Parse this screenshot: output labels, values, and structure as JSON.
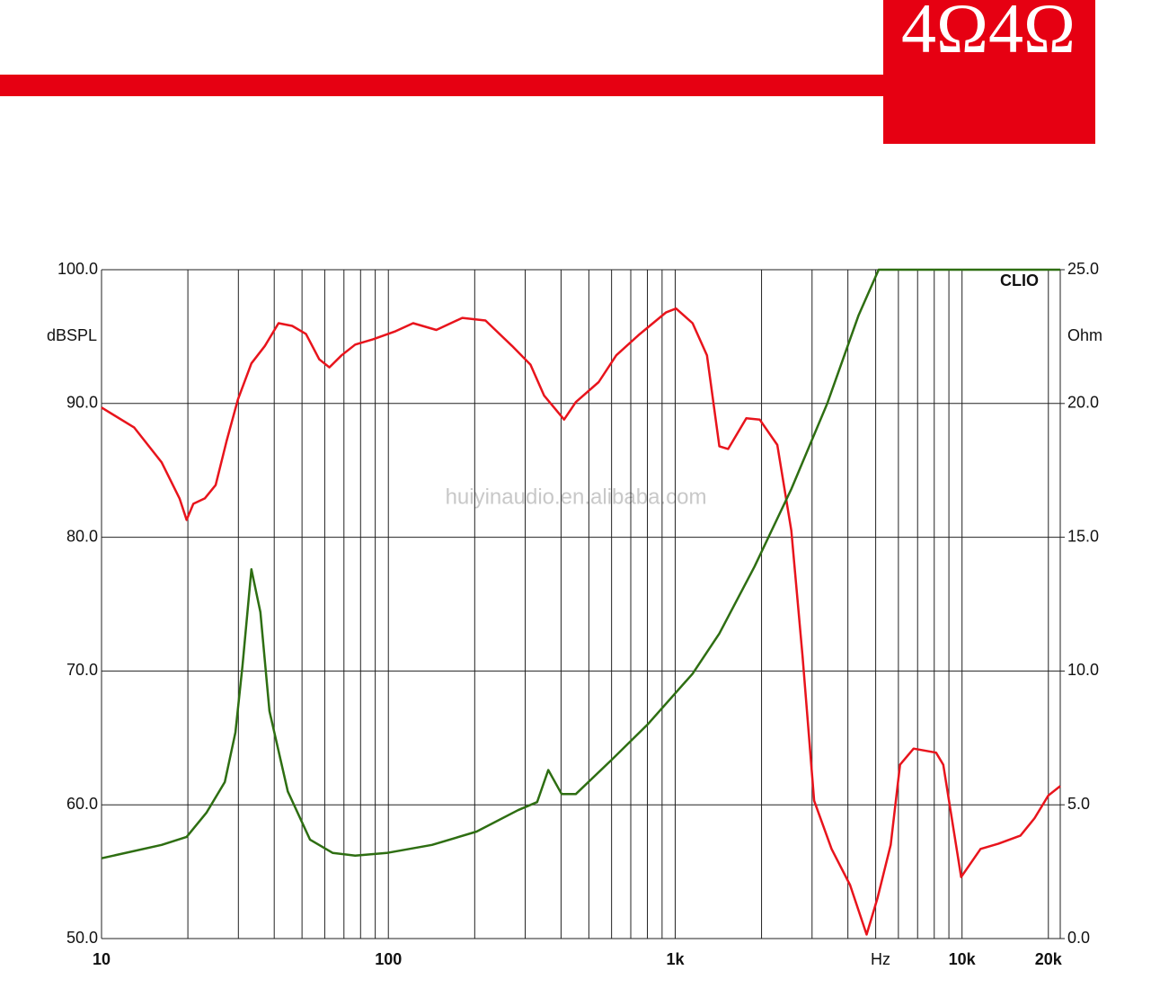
{
  "chart_data": {
    "type": "line",
    "badge": "4Ω4Ω",
    "watermark": "huiyinaudio.en.alibaba.com",
    "brand": "CLIO",
    "ylabel": "dBSPL",
    "y2label": "Ohm",
    "xlabel": "Hz",
    "xscale": "log",
    "xlim": [
      10,
      22000
    ],
    "xticks": [
      10,
      100,
      {
        "value": 1000,
        "label": "1k"
      },
      {
        "value": 10000,
        "label": "10k"
      },
      {
        "value": 20000,
        "label": "20k"
      }
    ],
    "xgrid": [
      20,
      30,
      40,
      50,
      60,
      70,
      80,
      90,
      200,
      300,
      400,
      500,
      600,
      700,
      800,
      900,
      2000,
      3000,
      4000,
      5000,
      6000,
      7000,
      8000,
      9000
    ],
    "ylim": [
      50,
      100
    ],
    "yticks": [
      {
        "value": 50,
        "label": "50.0"
      },
      {
        "value": 60,
        "label": "60.0"
      },
      {
        "value": 70,
        "label": "70.0"
      },
      {
        "value": 80,
        "label": "80.0"
      },
      {
        "value": 90,
        "label": "90.0"
      },
      {
        "value": 100,
        "label": "100.0"
      }
    ],
    "y2lim": [
      0,
      25
    ],
    "y2ticks": [
      {
        "value": 0,
        "label": "0.0"
      },
      {
        "value": 5,
        "label": "5.0"
      },
      {
        "value": 10,
        "label": "10.0"
      },
      {
        "value": 15,
        "label": "15.0"
      },
      {
        "value": 20,
        "label": "20.0"
      },
      {
        "value": 25,
        "label": "25.0"
      }
    ],
    "grid": true,
    "series": [
      {
        "color": "#e8141c",
        "x": [
          10,
          13,
          16.2,
          18.7,
          19.8,
          20.9,
          22.9,
          25,
          27.3,
          29.9,
          33.3,
          37.1,
          41.4,
          46.2,
          51.6,
          57.4,
          62.3,
          68.7,
          76.6,
          88.4,
          106,
          122,
          147,
          181,
          218,
          270,
          313,
          349,
          410,
          450,
          541,
          623,
          744,
          928,
          1007,
          1150,
          1290,
          1425,
          1530,
          1770,
          1970,
          2270,
          2540,
          2780,
          3050,
          3510,
          4070,
          4650,
          5070,
          5640,
          6080,
          6780,
          8120,
          8600,
          9930,
          11600,
          13400,
          16000,
          17900,
          20000,
          22000
        ],
        "values": [
          89.7,
          88.2,
          85.6,
          82.9,
          81.3,
          82.5,
          82.9,
          83.9,
          87.2,
          90.3,
          93,
          94.3,
          96,
          95.8,
          95.2,
          93.3,
          92.7,
          93.6,
          94.4,
          94.8,
          95.4,
          96,
          95.5,
          96.4,
          96.2,
          94.3,
          92.9,
          90.6,
          88.8,
          90.1,
          91.6,
          93.6,
          95.1,
          96.8,
          97.1,
          96,
          93.6,
          86.8,
          86.6,
          88.9,
          88.8,
          86.9,
          80.5,
          71.1,
          60.3,
          56.7,
          54,
          50.3,
          53,
          57,
          63,
          64.2,
          63.9,
          63,
          54.6,
          56.7,
          57.1,
          57.7,
          59,
          60.7,
          61.4
        ]
      },
      {
        "color": "#2e6e12",
        "axis": "y2",
        "x": [
          10,
          16.2,
          19.8,
          23.2,
          26.9,
          29.3,
          31,
          33.3,
          35.8,
          38.5,
          44.6,
          53.3,
          64,
          76.6,
          98.6,
          142,
          203,
          283,
          330,
          361,
          402,
          450,
          603,
          801,
          1150,
          1425,
          1890,
          2540,
          3390,
          4360,
          5120,
          22000
        ],
        "values": [
          3.0,
          3.5,
          3.8,
          4.7,
          5.85,
          7.7,
          10.2,
          13.8,
          12.2,
          8.5,
          5.5,
          3.7,
          3.2,
          3.1,
          3.2,
          3.5,
          4.0,
          4.8,
          5.1,
          6.3,
          5.4,
          5.4,
          6.7,
          8.0,
          9.9,
          11.4,
          13.9,
          16.8,
          20,
          23.3,
          25,
          25
        ]
      }
    ]
  }
}
